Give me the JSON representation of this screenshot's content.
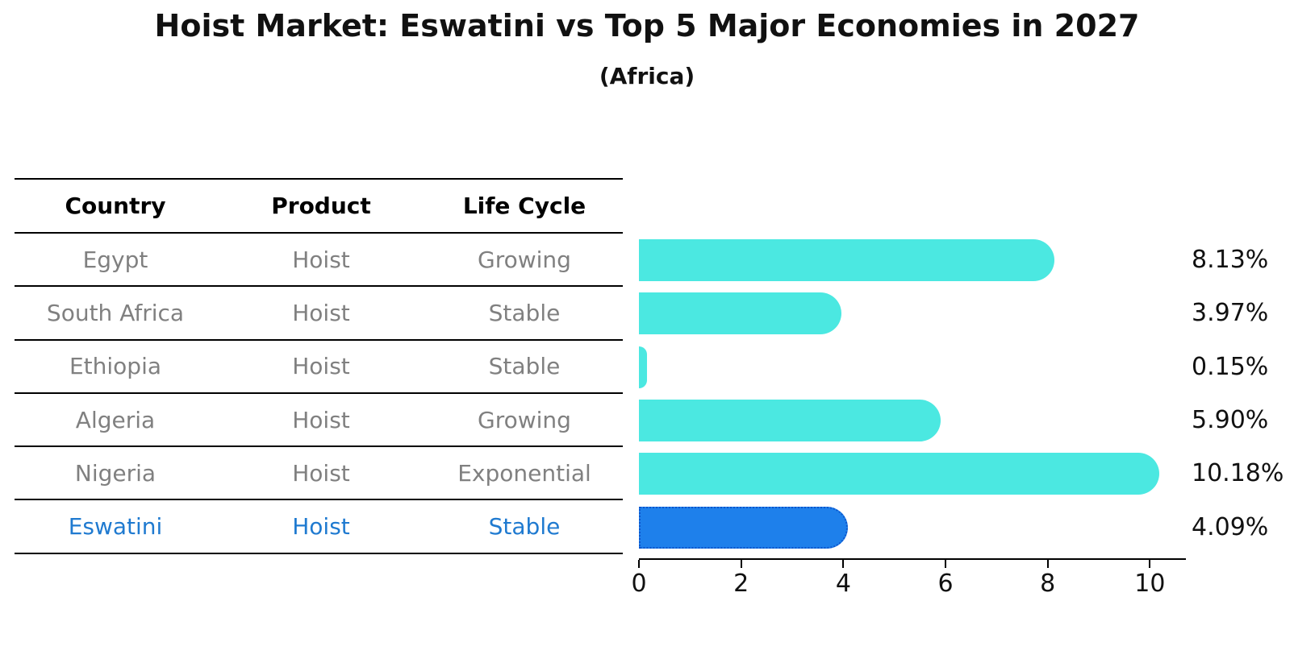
{
  "header": {
    "title": "Hoist Market: Eswatini vs Top 5 Major Economies in 2027",
    "subtitle": "(Africa)"
  },
  "table": {
    "columns": [
      "Country",
      "Product",
      "Life Cycle"
    ],
    "rows": [
      {
        "country": "Egypt",
        "product": "Hoist",
        "life_cycle": "Growing"
      },
      {
        "country": "South Africa",
        "product": "Hoist",
        "life_cycle": "Stable"
      },
      {
        "country": "Ethiopia",
        "product": "Hoist",
        "life_cycle": "Stable"
      },
      {
        "country": "Algeria",
        "product": "Hoist",
        "life_cycle": "Growing"
      },
      {
        "country": "Nigeria",
        "product": "Hoist",
        "life_cycle": "Exponential"
      },
      {
        "country": "Eswatini",
        "product": "Hoist",
        "life_cycle": "Stable"
      }
    ],
    "highlight_row": "Eswatini"
  },
  "chart_data": {
    "type": "bar",
    "orientation": "horizontal",
    "title": "Hoist Market: Eswatini vs Top 5 Major Economies in 2027 (Africa)",
    "categories": [
      "Egypt",
      "South Africa",
      "Ethiopia",
      "Algeria",
      "Nigeria",
      "Eswatini"
    ],
    "values": [
      8.13,
      3.97,
      0.15,
      5.9,
      10.18,
      4.09
    ],
    "bar_labels": [
      "8.13%",
      "3.97%",
      "0.15%",
      "5.90%",
      "10.18%",
      "4.09%"
    ],
    "unit": "%",
    "xticks": [
      0,
      2,
      4,
      6,
      8,
      10
    ],
    "xlim": [
      0,
      10.7
    ],
    "grid": false,
    "legend": false,
    "highlight_index": 5,
    "colors": {
      "bar_default": "#4BE8E1",
      "bar_highlight": "#1E80EB",
      "bar_highlight_border": "#0D55CC",
      "highlight_text": "#1F7AD0",
      "table_text": "#808080",
      "axis_text": "#111111"
    }
  }
}
